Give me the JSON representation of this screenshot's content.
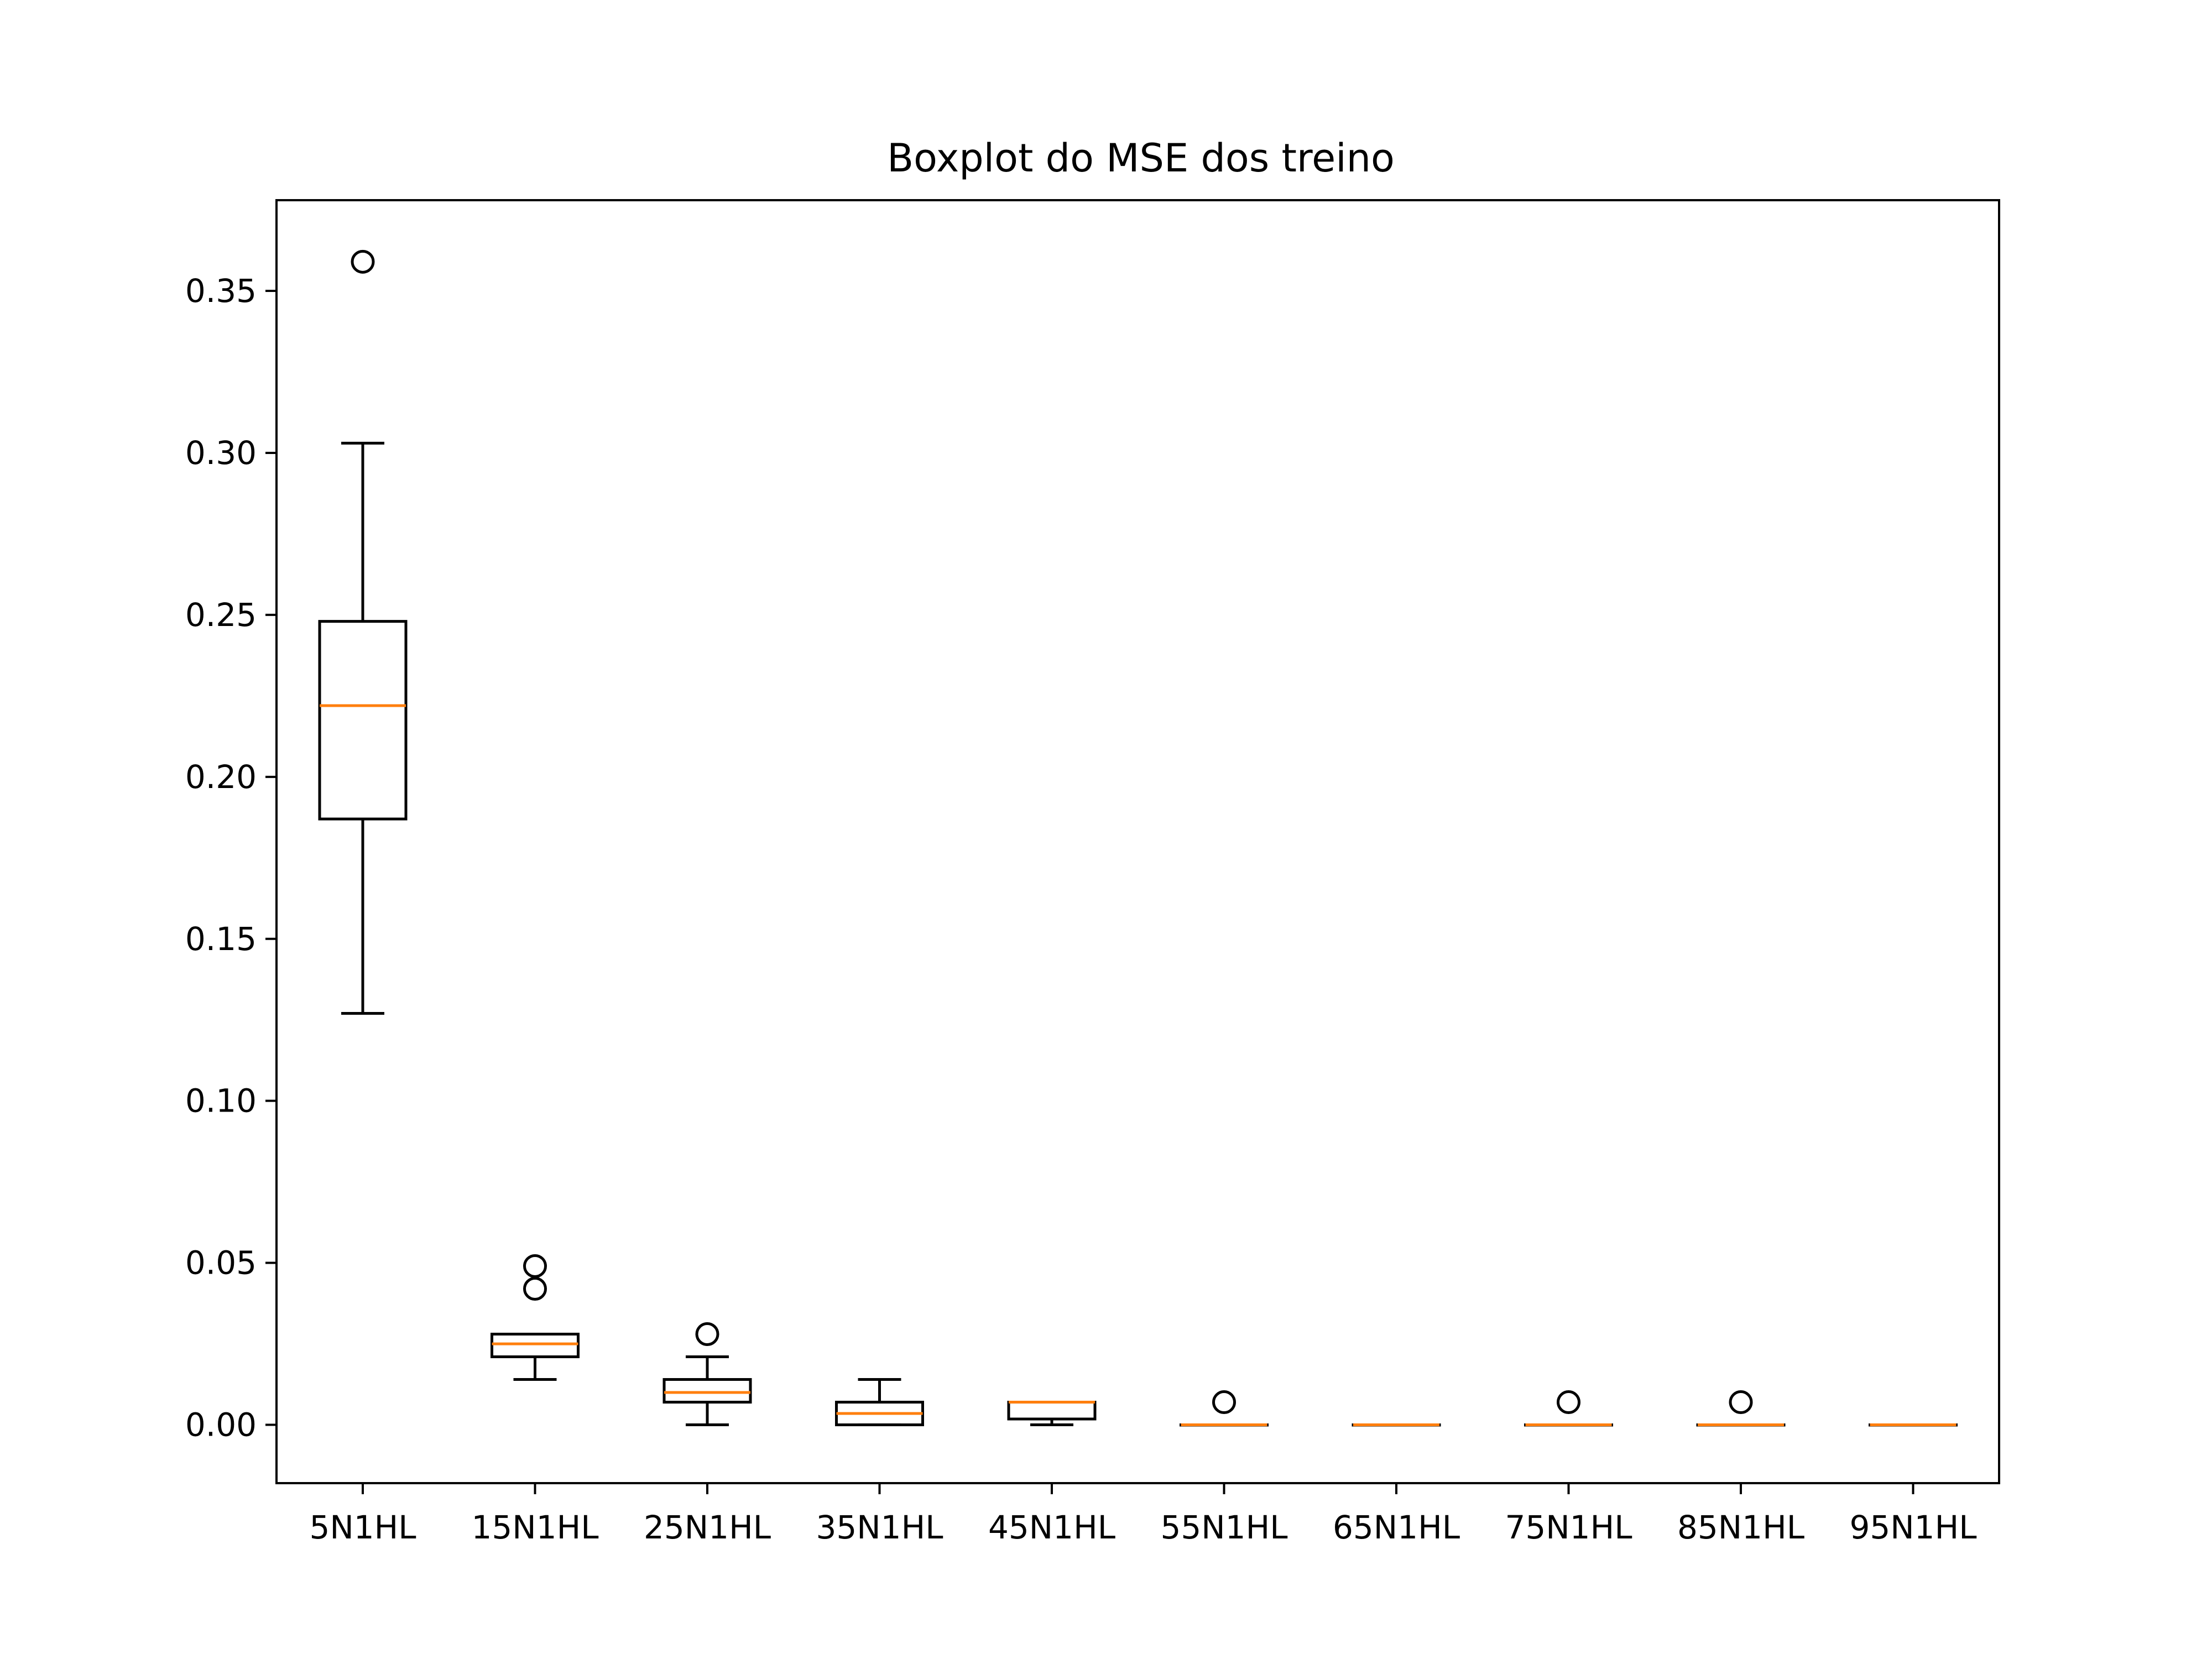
{
  "chart_data": {
    "type": "box",
    "title": "Boxplot do MSE dos treino",
    "xlabel": "",
    "ylabel": "",
    "ylim": [
      -0.018,
      0.378
    ],
    "yticks": [
      0.0,
      0.05,
      0.1,
      0.15,
      0.2,
      0.25,
      0.3,
      0.35
    ],
    "ytick_labels": [
      "0.00",
      "0.05",
      "0.10",
      "0.15",
      "0.20",
      "0.25",
      "0.30",
      "0.35"
    ],
    "grid": false,
    "colors": {
      "box": "#000000",
      "median": "#ff7f0e",
      "outlier": "#000000"
    },
    "categories": [
      "5N1HL",
      "15N1HL",
      "25N1HL",
      "35N1HL",
      "45N1HL",
      "55N1HL",
      "65N1HL",
      "75N1HL",
      "85N1HL",
      "95N1HL"
    ],
    "boxes": [
      {
        "label": "5N1HL",
        "whisker_low": 0.127,
        "q1": 0.187,
        "median": 0.222,
        "q3": 0.248,
        "whisker_high": 0.303,
        "outliers": [
          0.359
        ]
      },
      {
        "label": "15N1HL",
        "whisker_low": 0.014,
        "q1": 0.021,
        "median": 0.025,
        "q3": 0.028,
        "whisker_high": 0.028,
        "outliers": [
          0.042,
          0.049
        ]
      },
      {
        "label": "25N1HL",
        "whisker_low": 0.0,
        "q1": 0.007,
        "median": 0.01,
        "q3": 0.014,
        "whisker_high": 0.021,
        "outliers": [
          0.028
        ]
      },
      {
        "label": "35N1HL",
        "whisker_low": 0.0,
        "q1": 0.0,
        "median": 0.0035,
        "q3": 0.007,
        "whisker_high": 0.014,
        "outliers": []
      },
      {
        "label": "45N1HL",
        "whisker_low": 0.0,
        "q1": 0.0018,
        "median": 0.007,
        "q3": 0.007,
        "whisker_high": 0.007,
        "outliers": []
      },
      {
        "label": "55N1HL",
        "whisker_low": 0.0,
        "q1": 0.0,
        "median": 0.0,
        "q3": 0.0,
        "whisker_high": 0.0,
        "outliers": [
          0.007
        ]
      },
      {
        "label": "65N1HL",
        "whisker_low": 0.0,
        "q1": 0.0,
        "median": 0.0,
        "q3": 0.0,
        "whisker_high": 0.0,
        "outliers": []
      },
      {
        "label": "75N1HL",
        "whisker_low": 0.0,
        "q1": 0.0,
        "median": 0.0,
        "q3": 0.0,
        "whisker_high": 0.0,
        "outliers": [
          0.007
        ]
      },
      {
        "label": "85N1HL",
        "whisker_low": 0.0,
        "q1": 0.0,
        "median": 0.0,
        "q3": 0.0,
        "whisker_high": 0.0,
        "outliers": [
          0.007
        ]
      },
      {
        "label": "95N1HL",
        "whisker_low": 0.0,
        "q1": 0.0,
        "median": 0.0,
        "q3": 0.0,
        "whisker_high": 0.0,
        "outliers": []
      }
    ]
  }
}
